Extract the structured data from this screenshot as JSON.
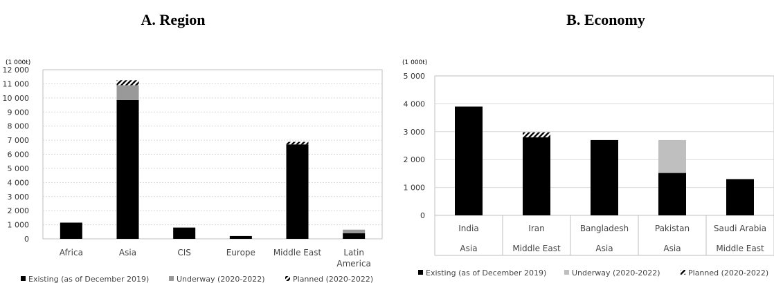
{
  "chart_data": [
    {
      "type": "bar",
      "stacked": true,
      "title": "A. Region",
      "unit_label": "(1 000t)",
      "ylim": [
        0,
        12000
      ],
      "yticks": [
        "0",
        "1 000",
        "2 000",
        "3 000",
        "4 000",
        "5 000",
        "6 000",
        "7 000",
        "8 000",
        "9 000",
        "10 000",
        "11 000",
        "12 000"
      ],
      "categories": [
        "Africa",
        "Asia",
        "CIS",
        "Europe",
        "Middle East",
        "Latin\nAmerica"
      ],
      "series": [
        {
          "name": "Existing (as of December 2019)",
          "values": [
            1150,
            9850,
            800,
            200,
            6700,
            400
          ]
        },
        {
          "name": "Underway (2020-2022)",
          "values": [
            0,
            1050,
            0,
            0,
            0,
            250
          ]
        },
        {
          "name": "Planned (2020-2022)",
          "values": [
            0,
            350,
            0,
            0,
            180,
            0
          ]
        }
      ],
      "grid": true,
      "legend_position": "bottom"
    },
    {
      "type": "bar",
      "stacked": true,
      "title": "B. Economy",
      "unit_label": "(1 000t)",
      "ylim": [
        0,
        5000
      ],
      "yticks": [
        "0",
        "1 000",
        "2 000",
        "3 000",
        "4 000",
        "5 000"
      ],
      "categories": [
        "India",
        "Iran",
        "Bangladesh",
        "Pakistan",
        "Saudi Arabia"
      ],
      "subcategories": [
        "Asia",
        "Middle East",
        "Asia",
        "Asia",
        "Middle East"
      ],
      "series": [
        {
          "name": "Existing (as of December 2019)",
          "values": [
            3900,
            2800,
            2700,
            1520,
            1300
          ]
        },
        {
          "name": "Underway (2020-2022)",
          "values": [
            0,
            0,
            0,
            1180,
            0
          ]
        },
        {
          "name": "Planned (2020-2022)",
          "values": [
            0,
            180,
            0,
            0,
            0
          ]
        }
      ],
      "grid": true,
      "legend_position": "bottom"
    }
  ],
  "colors": {
    "existing": "#000000",
    "underway_a": "#999999",
    "underway_b": "#bfbfbf",
    "grid": "#d9d9d9",
    "axis": "#bfbfbf"
  }
}
